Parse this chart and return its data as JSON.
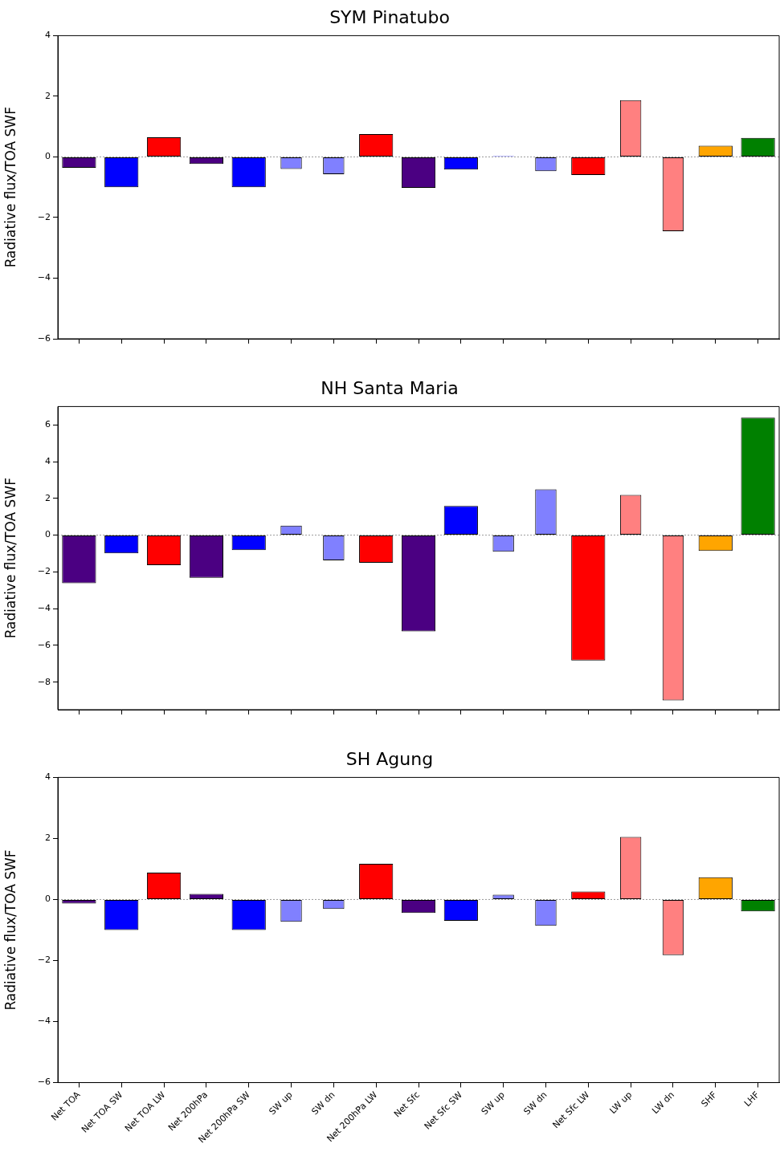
{
  "chart_data": [
    {
      "type": "bar",
      "title": "SYM Pinatubo",
      "ylabel": "Radiative flux/TOA SWF",
      "ylim": [
        -6,
        4
      ],
      "yticks": [
        -6,
        -4,
        -2,
        0,
        2,
        4
      ],
      "categories": [
        null,
        null,
        null,
        null,
        null,
        null,
        null,
        null,
        null,
        null,
        null,
        null,
        null,
        null,
        null,
        null,
        null
      ],
      "tick_labels": "y",
      "grid": false,
      "legend": false,
      "series": [
        {
          "values": [
            -0.36,
            -1.0,
            0.65,
            -0.23,
            -1.0,
            null,
            null,
            0.75,
            -1.02,
            -0.42,
            null,
            null,
            -0.6,
            null,
            null,
            0.37,
            0.63
          ],
          "colors": [
            "#4b0082",
            "#0000ff",
            "#ff0000",
            "#4b0082",
            "#0000ff",
            null,
            null,
            "#ff0000",
            "#4b0082",
            "#0000ff",
            null,
            null,
            "#ff0000",
            null,
            null,
            "#ffa500",
            "#008000"
          ]
        },
        {
          "values": [
            null,
            null,
            null,
            null,
            null,
            -0.4,
            -0.57,
            null,
            null,
            null,
            0.03,
            -0.47,
            null,
            1.87,
            -2.45,
            null,
            null
          ],
          "colors": [
            null,
            null,
            null,
            null,
            null,
            "#8080ff",
            "#8080ff",
            null,
            null,
            null,
            "#8080ff",
            "#8080ff",
            null,
            "#ff8080",
            "#ff8080",
            null,
            null
          ]
        }
      ],
      "ref_lines": [
        {
          "axis": "y",
          "value": 0,
          "color": "#808080",
          "line_style": "dotted"
        }
      ]
    },
    {
      "type": "bar",
      "title": "NH Santa Maria",
      "ylabel": "Radiative flux/TOA SWF",
      "ylim": [
        -9.5,
        7
      ],
      "yticks": [
        -8,
        -6,
        -4,
        -2,
        0,
        2,
        4,
        6
      ],
      "categories": [
        null,
        null,
        null,
        null,
        null,
        null,
        null,
        null,
        null,
        null,
        null,
        null,
        null,
        null,
        null,
        null,
        null
      ],
      "tick_labels": "y",
      "grid": false,
      "legend": false,
      "series": [
        {
          "values": [
            -2.62,
            -0.99,
            -1.63,
            -2.32,
            -0.82,
            null,
            null,
            -1.5,
            -5.24,
            1.59,
            null,
            null,
            -6.82,
            null,
            null,
            -0.86,
            6.39
          ],
          "colors": [
            "#4b0082",
            "#0000ff",
            "#ff0000",
            "#4b0082",
            "#0000ff",
            null,
            null,
            "#ff0000",
            "#4b0082",
            "#0000ff",
            null,
            null,
            "#ff0000",
            null,
            null,
            "#ffa500",
            "#008000"
          ]
        },
        {
          "values": [
            null,
            null,
            null,
            null,
            null,
            0.52,
            -1.37,
            null,
            null,
            null,
            -0.9,
            2.49,
            null,
            2.19,
            -9.0,
            null,
            null
          ],
          "colors": [
            null,
            null,
            null,
            null,
            null,
            "#8080ff",
            "#8080ff",
            null,
            null,
            null,
            "#8080ff",
            "#8080ff",
            null,
            "#ff8080",
            "#ff8080",
            null,
            null
          ]
        }
      ],
      "ref_lines": [
        {
          "axis": "y",
          "value": 0,
          "color": "#808080",
          "line_style": "dotted"
        }
      ]
    },
    {
      "type": "bar",
      "title": "SH Agung",
      "ylabel": "Radiative flux/TOA SWF",
      "ylim": [
        -6,
        4
      ],
      "yticks": [
        -6,
        -4,
        -2,
        0,
        2,
        4
      ],
      "categories": [
        "Net TOA",
        "Net TOA SW",
        "Net TOA LW",
        "Net 200hPa",
        "Net 200hPa SW",
        "SW up",
        "SW dn",
        "Net 200hPa LW",
        "Net Sfc",
        "Net Sfc SW",
        "SW up",
        "SW dn",
        "Net Sfc LW",
        "LW up",
        "LW dn",
        "SHF",
        "LHF"
      ],
      "grid": false,
      "legend": false,
      "series": [
        {
          "values": [
            -0.13,
            -1.0,
            0.88,
            0.18,
            -1.0,
            null,
            null,
            1.17,
            -0.44,
            -0.7,
            null,
            null,
            0.26,
            null,
            null,
            0.73,
            -0.39
          ],
          "colors": [
            "#4b0082",
            "#0000ff",
            "#ff0000",
            "#4b0082",
            "#0000ff",
            null,
            null,
            "#ff0000",
            "#4b0082",
            "#0000ff",
            null,
            null,
            "#ff0000",
            null,
            null,
            "#ffa500",
            "#008000"
          ]
        },
        {
          "values": [
            null,
            null,
            null,
            null,
            null,
            -0.73,
            -0.31,
            null,
            null,
            null,
            0.16,
            -0.86,
            null,
            2.05,
            -1.82,
            null,
            null
          ],
          "colors": [
            null,
            null,
            null,
            null,
            null,
            "#8080ff",
            "#8080ff",
            null,
            null,
            null,
            "#8080ff",
            "#8080ff",
            null,
            "#ff8080",
            "#ff8080",
            null,
            null
          ]
        }
      ],
      "ref_lines": [
        {
          "axis": "y",
          "value": 0,
          "color": "#808080",
          "line_style": "dotted"
        }
      ]
    }
  ]
}
